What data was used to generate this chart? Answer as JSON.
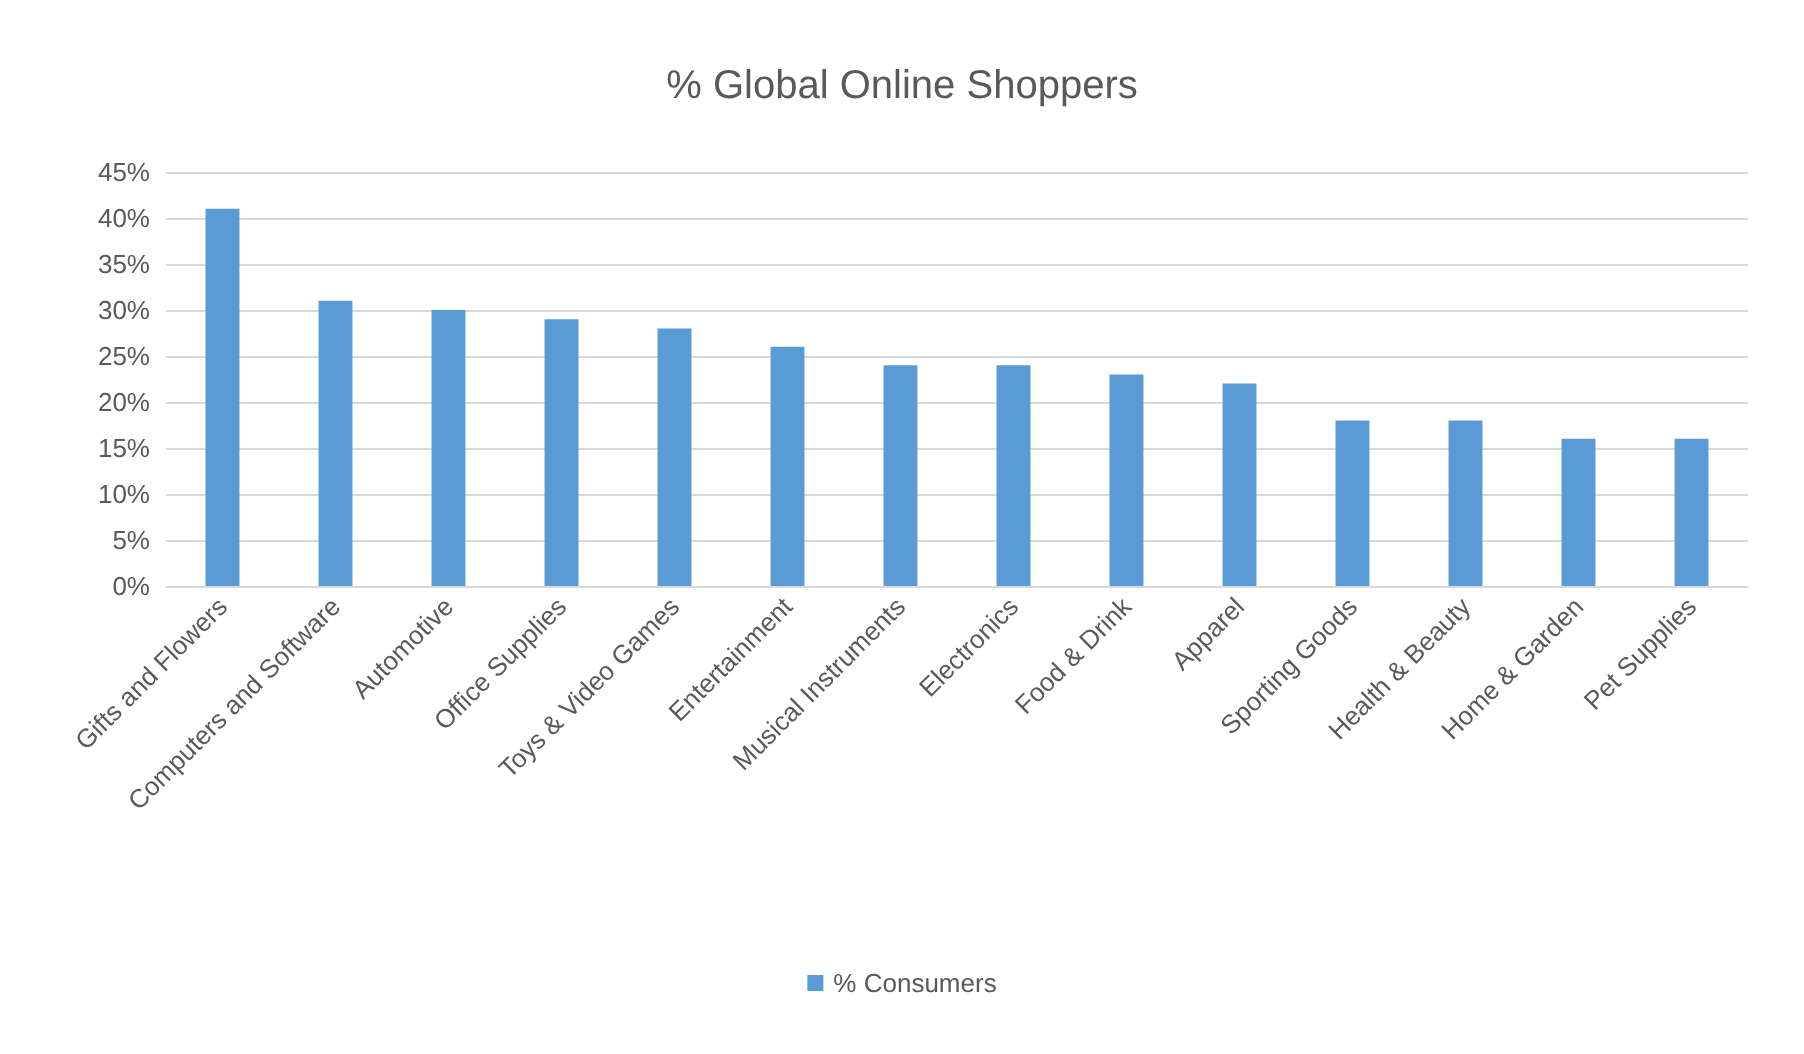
{
  "chart_data": {
    "type": "bar",
    "title": "% Global Online Shoppers",
    "categories": [
      "Gifts and Flowers",
      "Computers and Software",
      "Automotive",
      "Office Supplies",
      "Toys & Video Games",
      "Entertainment",
      "Musical Instruments",
      "Electronics",
      "Food & Drink",
      "Apparel",
      "Sporting Goods",
      "Health & Beauty",
      "Home & Garden",
      "Pet Supplies"
    ],
    "series": [
      {
        "name": "% Consumers",
        "color": "#5b9bd5",
        "values": [
          41,
          31,
          30,
          29,
          28,
          26,
          24,
          24,
          23,
          22,
          18,
          18,
          16,
          16
        ]
      }
    ],
    "ylim": [
      0,
      45
    ],
    "yticks": [
      {
        "value": 0,
        "label": "0%"
      },
      {
        "value": 5,
        "label": "5%"
      },
      {
        "value": 10,
        "label": "10%"
      },
      {
        "value": 15,
        "label": "15%"
      },
      {
        "value": 20,
        "label": "20%"
      },
      {
        "value": 25,
        "label": "25%"
      },
      {
        "value": 30,
        "label": "30%"
      },
      {
        "value": 35,
        "label": "35%"
      },
      {
        "value": 40,
        "label": "40%"
      },
      {
        "value": 45,
        "label": "45%"
      }
    ],
    "grid": "y",
    "legend": "bottom"
  }
}
